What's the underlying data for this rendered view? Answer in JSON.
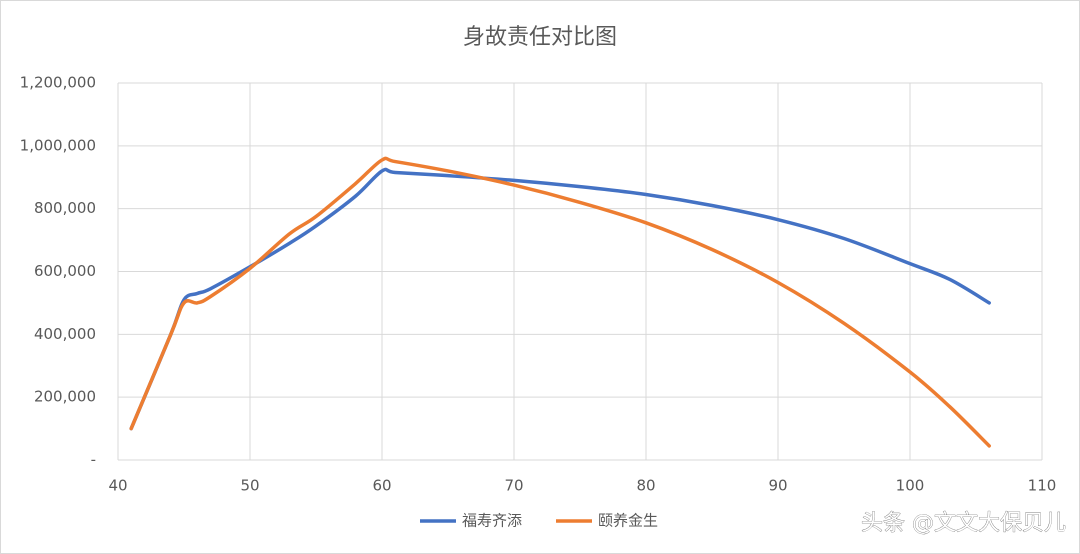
{
  "chart_data": {
    "type": "line",
    "title": "身故责任对比图",
    "x": [
      41,
      44,
      45,
      46,
      47,
      50,
      53,
      55,
      58,
      60,
      61,
      65,
      70,
      75,
      80,
      85,
      90,
      95,
      100,
      103,
      106
    ],
    "series": [
      {
        "name": "福寿齐添",
        "color": "#4472c4",
        "values": [
          100000,
          400000,
          510000,
          530000,
          545000,
          615000,
          690000,
          745000,
          840000,
          920000,
          915000,
          905000,
          890000,
          870000,
          845000,
          810000,
          765000,
          705000,
          625000,
          575000,
          500000
        ]
      },
      {
        "name": "颐养金生",
        "color": "#ed7d31",
        "values": [
          100000,
          400000,
          500000,
          500000,
          520000,
          610000,
          720000,
          775000,
          880000,
          955000,
          950000,
          920000,
          875000,
          820000,
          755000,
          670000,
          565000,
          435000,
          280000,
          170000,
          45000
        ]
      }
    ],
    "xlim": [
      40,
      110
    ],
    "xticks": [
      40,
      50,
      60,
      70,
      80,
      90,
      100,
      110
    ],
    "ylim": [
      0,
      1200000
    ],
    "yticks": [
      {
        "value": 0,
        "label": "-"
      },
      {
        "value": 200000,
        "label": "200,000"
      },
      {
        "value": 400000,
        "label": "400,000"
      },
      {
        "value": 600000,
        "label": "600,000"
      },
      {
        "value": 800000,
        "label": "800,000"
      },
      {
        "value": 1000000,
        "label": "1,000,000"
      },
      {
        "value": 1200000,
        "label": "1,200,000"
      }
    ],
    "grid": true,
    "legend": "bottom",
    "smooth": true
  },
  "watermark": "头条 @文文大保贝儿"
}
